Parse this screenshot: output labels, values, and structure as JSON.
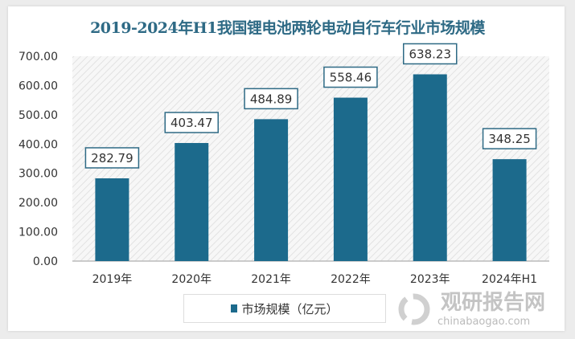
{
  "chart_data": {
    "type": "bar",
    "title": "2019-2024年H1我国锂电池两轮电动自行车行业市场规模",
    "categories": [
      "2019年",
      "2020年",
      "2021年",
      "2022年",
      "2023年",
      "2024年H1"
    ],
    "series": [
      {
        "name": "市场规模（亿元）",
        "values": [
          282.79,
          403.47,
          484.89,
          558.46,
          638.23,
          348.25
        ]
      }
    ],
    "value_labels": [
      "282.79",
      "403.47",
      "484.89",
      "558.46",
      "638.23",
      "348.25"
    ],
    "ylim": [
      0,
      700
    ],
    "yticks": [
      "0.00",
      "100.00",
      "200.00",
      "300.00",
      "400.00",
      "500.00",
      "600.00",
      "700.00"
    ],
    "legend_position": "bottom",
    "grid": false,
    "colors": {
      "bar": "#1c6a8c",
      "title": "#2e6a85",
      "label_border": "#2e6a85"
    }
  },
  "watermark": {
    "name": "观研报告网",
    "url": "chinabaogao.com"
  }
}
